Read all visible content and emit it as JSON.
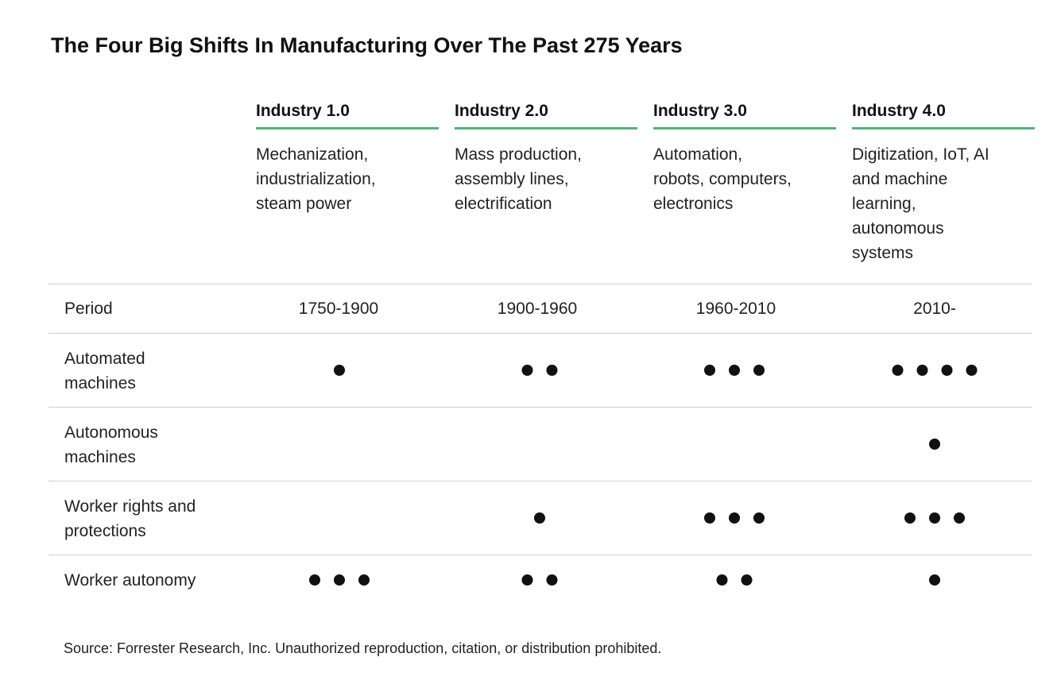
{
  "title": "The Four Big Shifts In Manufacturing Over The Past 275 Years",
  "source": "Source: Forrester Research, Inc. Unauthorized reproduction, citation, or distribution prohibited.",
  "accent_color": "#4db67a",
  "chart_data": {
    "type": "table",
    "title": "The Four Big Shifts In Manufacturing Over The Past 275 Years",
    "columns": [
      {
        "name": "Industry 1.0",
        "description": [
          "Mechanization,",
          "industrialization,",
          "steam power"
        ]
      },
      {
        "name": "Industry 2.0",
        "description": [
          "Mass production,",
          "assembly lines,",
          "electrification"
        ]
      },
      {
        "name": "Industry 3.0",
        "description": [
          "Automation,",
          "robots, computers,",
          "electronics"
        ]
      },
      {
        "name": "Industry 4.0",
        "description": [
          "Digitization, IoT, AI",
          "and machine",
          "learning,",
          "autonomous",
          "systems"
        ]
      }
    ],
    "period": {
      "label": "Period",
      "values": [
        "1750-1900",
        "1900-1960",
        "1960-2010",
        "2010-"
      ]
    },
    "rows": [
      {
        "label": [
          "Automated",
          "machines"
        ],
        "values": [
          1,
          2,
          3,
          4
        ]
      },
      {
        "label": [
          "Autonomous",
          "machines"
        ],
        "values": [
          0,
          0,
          0,
          1
        ]
      },
      {
        "label": [
          "Worker rights and",
          "protections"
        ],
        "values": [
          0,
          1,
          3,
          3
        ]
      },
      {
        "label": [
          "Worker autonomy"
        ],
        "values": [
          3,
          2,
          2,
          1
        ]
      }
    ]
  }
}
